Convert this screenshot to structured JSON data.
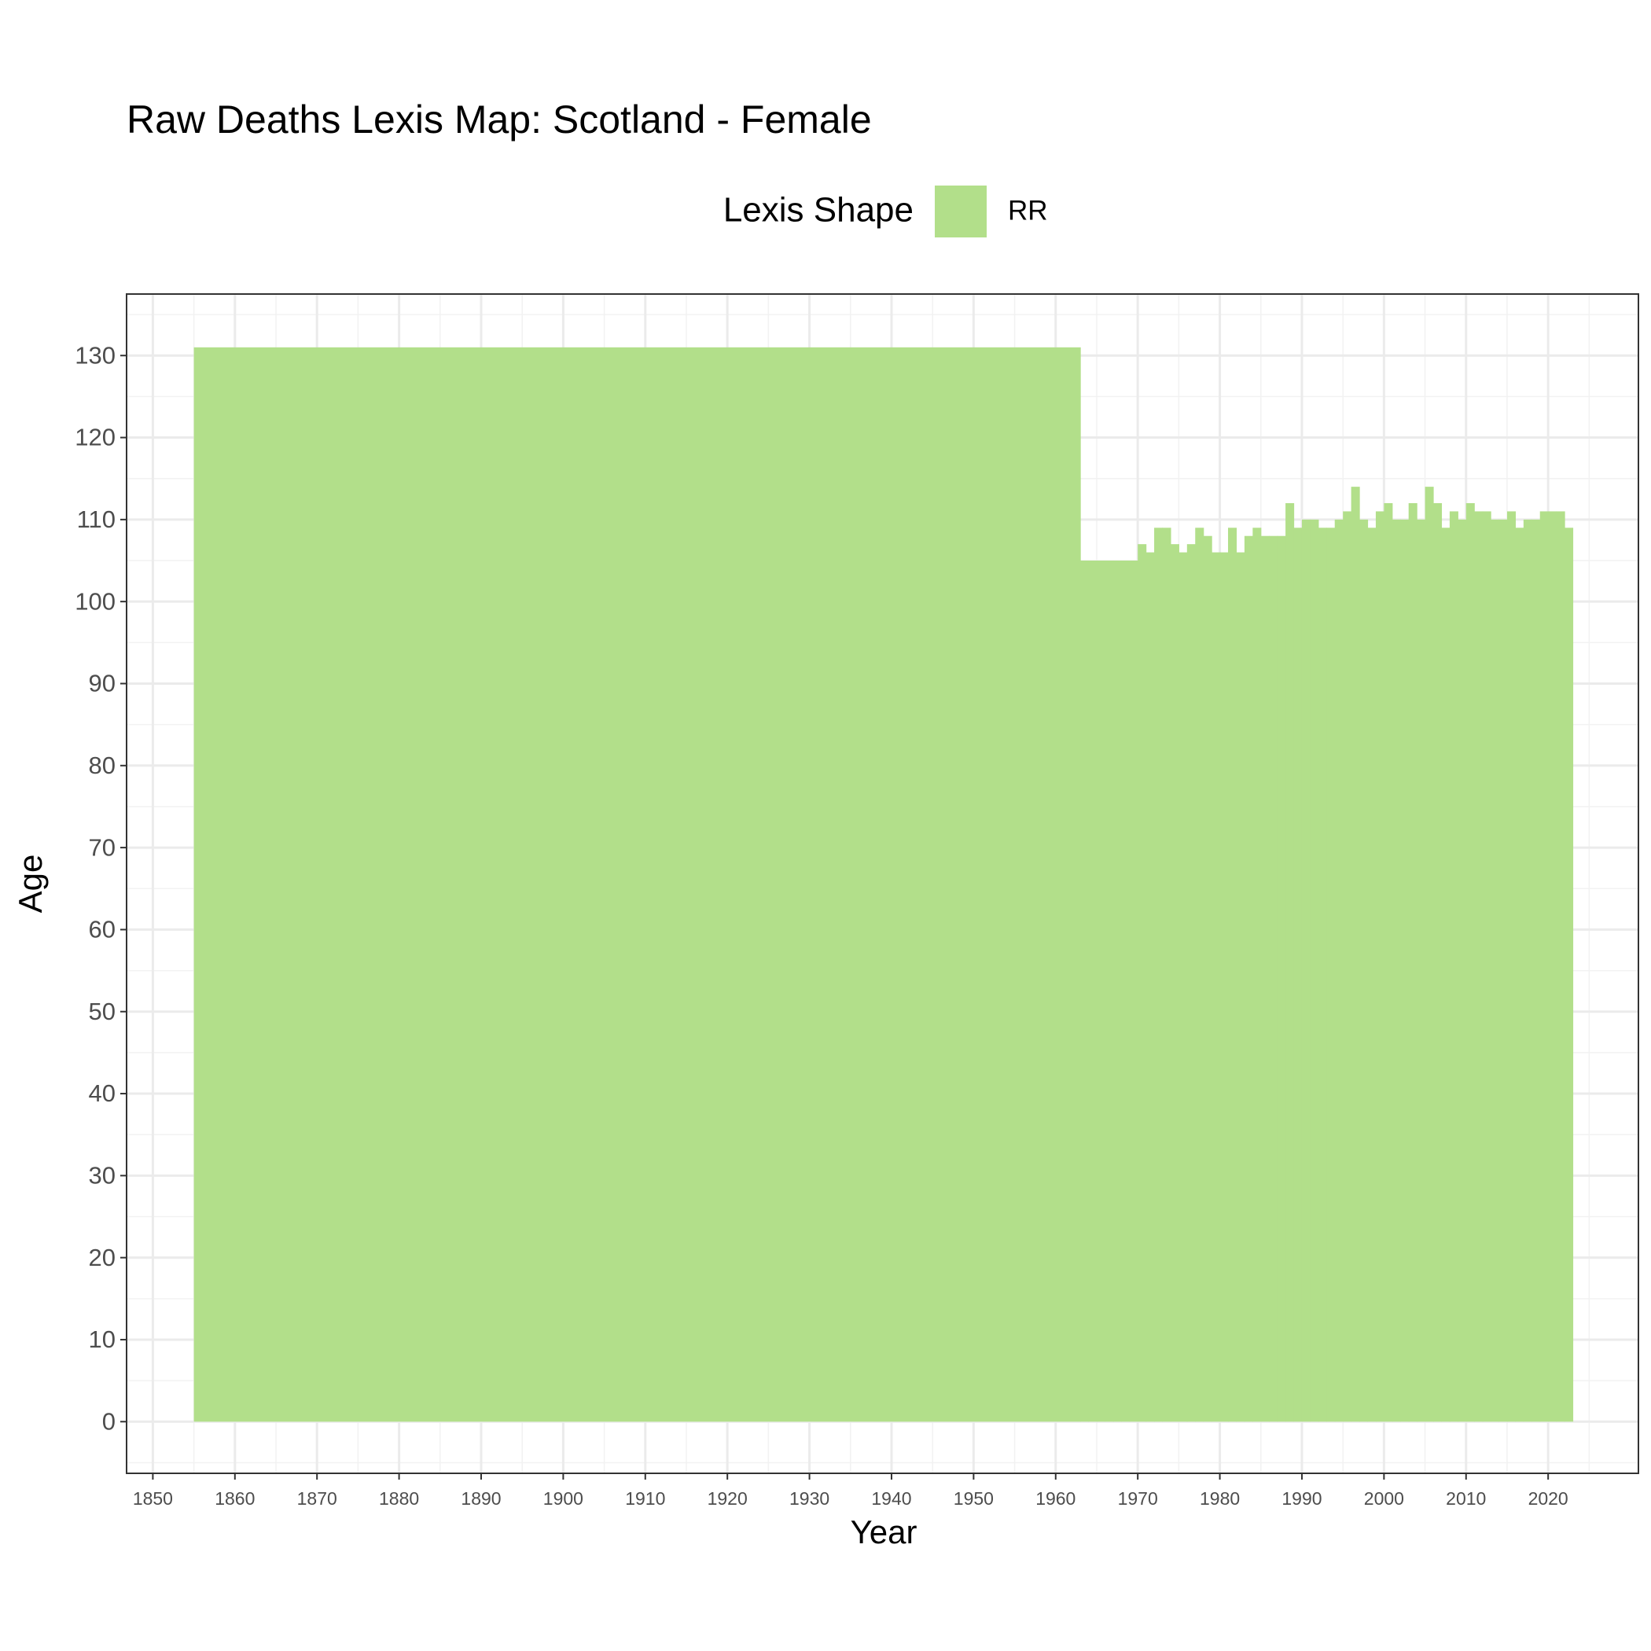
{
  "chart_data": {
    "type": "lexis",
    "title": "Raw Deaths Lexis Map: Scotland - Female",
    "x_label": "Year",
    "y_label": "Age",
    "legend_title": "Lexis Shape",
    "series": [
      {
        "name": "RR",
        "color": "#b2df8a",
        "bins": [
          1855,
          1963,
          1964,
          1965,
          1966,
          1967,
          1968,
          1969,
          1970,
          1971,
          1972,
          1973,
          1974,
          1975,
          1976,
          1977,
          1978,
          1979,
          1980,
          1981,
          1982,
          1983,
          1984,
          1985,
          1986,
          1987,
          1988,
          1989,
          1990,
          1991,
          1992,
          1993,
          1994,
          1995,
          1996,
          1997,
          1998,
          1999,
          2000,
          2001,
          2002,
          2003,
          2004,
          2005,
          2006,
          2007,
          2008,
          2009,
          2010,
          2011,
          2012,
          2013,
          2014,
          2015,
          2016,
          2017,
          2018,
          2019,
          2020,
          2021,
          2022,
          2023
        ],
        "values": [
          131,
          105,
          105,
          105,
          105,
          105,
          105,
          105,
          107,
          106,
          109,
          109,
          107,
          106,
          107,
          109,
          108,
          106,
          106,
          109,
          106,
          108,
          109,
          108,
          108,
          108,
          112,
          109,
          110,
          110,
          109,
          109,
          110,
          111,
          114,
          110,
          109,
          111,
          112,
          110,
          110,
          112,
          110,
          114,
          112,
          109,
          111,
          110,
          112,
          111,
          111,
          110,
          110,
          111,
          109,
          110,
          110,
          111,
          111,
          111,
          109
        ]
      }
    ],
    "xlim": [
      1846.8,
      2031
    ],
    "ylim": [
      -6.3,
      137.5
    ],
    "xticks": [
      1850,
      1860,
      1870,
      1880,
      1890,
      1900,
      1910,
      1920,
      1930,
      1940,
      1950,
      1960,
      1970,
      1980,
      1990,
      2000,
      2010,
      2020
    ],
    "yticks": [
      0,
      10,
      20,
      30,
      40,
      50,
      60,
      70,
      80,
      90,
      100,
      110,
      120,
      130
    ],
    "grid": true
  }
}
